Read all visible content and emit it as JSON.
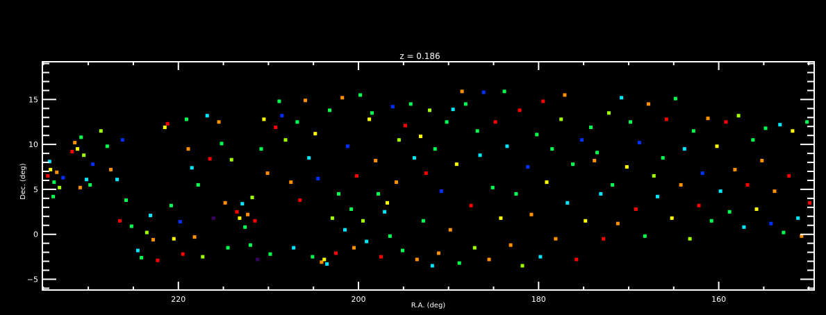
{
  "chart_data": {
    "type": "scatter",
    "title": "z = 0.186",
    "xlabel": "R.A. (deg)",
    "ylabel": "Dec. (deg)",
    "xlim": [
      235.1,
      149.4
    ],
    "ylim": [
      -6.2,
      19.2
    ],
    "x_reversed": true,
    "xticks": [
      220,
      200,
      180,
      160
    ],
    "yticks": [
      -5,
      0,
      5,
      10,
      15
    ],
    "grid": false,
    "background": "#000000",
    "axis_color": "#ffffff",
    "marker": "square",
    "palette": [
      "#3c0060",
      "#0030ff",
      "#00e8ff",
      "#00ff50",
      "#a0ff00",
      "#ffff00",
      "#ff9000",
      "#ff0000"
    ],
    "points": [
      [
        234.5,
        6.5,
        7
      ],
      [
        234.2,
        7.2,
        5
      ],
      [
        233.8,
        5.8,
        3
      ],
      [
        233.5,
        6.9,
        6
      ],
      [
        233.9,
        4.2,
        3
      ],
      [
        234.3,
        8.1,
        2
      ],
      [
        233.2,
        5.2,
        4
      ],
      [
        232.8,
        6.3,
        1
      ],
      [
        231.5,
        10.2,
        6
      ],
      [
        231.2,
        9.5,
        5
      ],
      [
        230.8,
        10.8,
        3
      ],
      [
        230.5,
        8.8,
        4
      ],
      [
        231.8,
        9.2,
        7
      ],
      [
        230.2,
        6.1,
        2
      ],
      [
        229.8,
        5.5,
        3
      ],
      [
        230.9,
        5.2,
        6
      ],
      [
        229.5,
        7.8,
        1
      ],
      [
        228.6,
        11.5,
        4
      ],
      [
        227.9,
        9.8,
        3
      ],
      [
        227.5,
        7.2,
        6
      ],
      [
        226.8,
        6.1,
        2
      ],
      [
        226.2,
        10.5,
        1
      ],
      [
        225.8,
        3.8,
        3
      ],
      [
        226.5,
        1.5,
        7
      ],
      [
        225.2,
        0.9,
        3
      ],
      [
        224.5,
        -1.8,
        2
      ],
      [
        224.1,
        -2.6,
        3
      ],
      [
        223.5,
        0.2,
        4
      ],
      [
        222.8,
        -0.6,
        6
      ],
      [
        223.1,
        2.1,
        2
      ],
      [
        222.3,
        -2.9,
        7
      ],
      [
        221.5,
        11.9,
        5
      ],
      [
        221.2,
        12.3,
        7
      ],
      [
        220.8,
        3.2,
        3
      ],
      [
        220.5,
        -0.5,
        5
      ],
      [
        219.8,
        1.4,
        1
      ],
      [
        219.5,
        -2.2,
        7
      ],
      [
        219.1,
        12.8,
        3
      ],
      [
        218.9,
        9.5,
        6
      ],
      [
        218.5,
        7.4,
        2
      ],
      [
        218.2,
        -0.3,
        6
      ],
      [
        217.8,
        5.5,
        3
      ],
      [
        217.3,
        -2.5,
        4
      ],
      [
        216.8,
        13.2,
        2
      ],
      [
        216.5,
        8.4,
        7
      ],
      [
        216.1,
        1.8,
        0
      ],
      [
        215.5,
        12.5,
        6
      ],
      [
        215.2,
        10.1,
        3
      ],
      [
        214.8,
        3.5,
        6
      ],
      [
        214.5,
        -1.5,
        3
      ],
      [
        214.1,
        8.3,
        4
      ],
      [
        213.5,
        2.5,
        7
      ],
      [
        213.2,
        1.8,
        5
      ],
      [
        212.9,
        3.4,
        2
      ],
      [
        212.6,
        0.8,
        3
      ],
      [
        212.3,
        2.2,
        6
      ],
      [
        212.0,
        -1.2,
        3
      ],
      [
        211.8,
        4.1,
        4
      ],
      [
        211.5,
        1.5,
        7
      ],
      [
        211.2,
        -2.8,
        0
      ],
      [
        210.8,
        9.5,
        3
      ],
      [
        210.5,
        12.8,
        5
      ],
      [
        210.1,
        6.8,
        6
      ],
      [
        209.8,
        -2.2,
        3
      ],
      [
        209.2,
        11.9,
        7
      ],
      [
        208.8,
        14.8,
        3
      ],
      [
        208.5,
        13.2,
        1
      ],
      [
        208.1,
        10.5,
        4
      ],
      [
        207.5,
        5.8,
        6
      ],
      [
        207.2,
        -1.5,
        2
      ],
      [
        206.8,
        12.5,
        3
      ],
      [
        206.5,
        3.8,
        7
      ],
      [
        205.9,
        14.9,
        6
      ],
      [
        205.5,
        8.5,
        2
      ],
      [
        205.1,
        -2.5,
        3
      ],
      [
        204.8,
        11.2,
        5
      ],
      [
        204.5,
        6.2,
        1
      ],
      [
        204.1,
        -3.1,
        6
      ],
      [
        203.8,
        -2.8,
        5
      ],
      [
        203.5,
        -3.3,
        2
      ],
      [
        203.2,
        13.8,
        3
      ],
      [
        202.9,
        1.8,
        4
      ],
      [
        202.5,
        -2.1,
        7
      ],
      [
        202.2,
        4.5,
        3
      ],
      [
        201.8,
        15.2,
        6
      ],
      [
        201.5,
        0.5,
        2
      ],
      [
        201.2,
        9.8,
        1
      ],
      [
        200.8,
        2.8,
        3
      ],
      [
        200.5,
        -1.5,
        6
      ],
      [
        200.2,
        6.5,
        7
      ],
      [
        199.8,
        15.5,
        3
      ],
      [
        199.5,
        1.5,
        4
      ],
      [
        199.1,
        -0.8,
        2
      ],
      [
        198.8,
        12.8,
        5
      ],
      [
        198.5,
        13.5,
        3
      ],
      [
        198.1,
        8.2,
        6
      ],
      [
        197.8,
        4.5,
        3
      ],
      [
        197.5,
        -2.5,
        7
      ],
      [
        197.1,
        2.5,
        2
      ],
      [
        196.8,
        3.5,
        5
      ],
      [
        196.5,
        -0.2,
        3
      ],
      [
        196.2,
        14.2,
        1
      ],
      [
        195.8,
        5.8,
        6
      ],
      [
        195.5,
        10.5,
        4
      ],
      [
        195.1,
        -1.8,
        3
      ],
      [
        194.8,
        12.1,
        7
      ],
      [
        194.2,
        14.5,
        3
      ],
      [
        193.8,
        8.5,
        2
      ],
      [
        193.5,
        -2.8,
        6
      ],
      [
        193.1,
        10.9,
        5
      ],
      [
        192.8,
        1.5,
        3
      ],
      [
        192.5,
        6.8,
        7
      ],
      [
        192.1,
        13.8,
        4
      ],
      [
        191.8,
        -3.5,
        2
      ],
      [
        191.5,
        9.5,
        3
      ],
      [
        191.1,
        -2.1,
        6
      ],
      [
        190.8,
        4.8,
        1
      ],
      [
        190.2,
        12.5,
        3
      ],
      [
        189.8,
        0.5,
        6
      ],
      [
        189.5,
        13.9,
        2
      ],
      [
        189.1,
        7.8,
        5
      ],
      [
        188.8,
        -3.2,
        3
      ],
      [
        188.5,
        15.9,
        6
      ],
      [
        188.1,
        14.5,
        3
      ],
      [
        187.5,
        3.2,
        7
      ],
      [
        187.1,
        -1.5,
        4
      ],
      [
        186.8,
        11.5,
        3
      ],
      [
        186.5,
        8.8,
        2
      ],
      [
        186.1,
        15.8,
        1
      ],
      [
        185.5,
        -2.8,
        6
      ],
      [
        185.1,
        5.2,
        3
      ],
      [
        184.8,
        12.5,
        7
      ],
      [
        184.2,
        1.8,
        5
      ],
      [
        183.8,
        15.9,
        3
      ],
      [
        183.5,
        9.8,
        2
      ],
      [
        183.1,
        -1.2,
        6
      ],
      [
        182.5,
        4.5,
        3
      ],
      [
        182.1,
        13.8,
        7
      ],
      [
        181.8,
        -3.5,
        4
      ],
      [
        181.2,
        7.5,
        1
      ],
      [
        180.8,
        2.2,
        6
      ],
      [
        180.2,
        11.1,
        3
      ],
      [
        179.8,
        -2.5,
        2
      ],
      [
        179.5,
        14.8,
        7
      ],
      [
        179.1,
        5.8,
        5
      ],
      [
        178.5,
        9.5,
        3
      ],
      [
        178.1,
        -0.5,
        6
      ],
      [
        177.5,
        12.8,
        4
      ],
      [
        177.1,
        15.5,
        6
      ],
      [
        176.8,
        3.5,
        2
      ],
      [
        176.2,
        7.8,
        3
      ],
      [
        175.8,
        -2.8,
        7
      ],
      [
        175.2,
        10.5,
        1
      ],
      [
        174.8,
        1.5,
        5
      ],
      [
        174.2,
        11.9,
        3
      ],
      [
        173.8,
        8.2,
        6
      ],
      [
        173.5,
        9.1,
        3
      ],
      [
        173.1,
        4.5,
        2
      ],
      [
        172.8,
        -0.5,
        7
      ],
      [
        172.2,
        13.5,
        4
      ],
      [
        171.8,
        5.5,
        3
      ],
      [
        171.2,
        1.2,
        6
      ],
      [
        170.8,
        15.2,
        2
      ],
      [
        170.2,
        7.5,
        5
      ],
      [
        169.8,
        12.5,
        3
      ],
      [
        169.2,
        2.8,
        7
      ],
      [
        168.8,
        10.2,
        1
      ],
      [
        168.2,
        -0.2,
        3
      ],
      [
        167.8,
        14.5,
        6
      ],
      [
        167.2,
        6.5,
        4
      ],
      [
        166.8,
        4.2,
        2
      ],
      [
        166.2,
        8.5,
        3
      ],
      [
        165.8,
        12.8,
        7
      ],
      [
        165.2,
        1.8,
        5
      ],
      [
        164.8,
        15.1,
        3
      ],
      [
        164.2,
        5.5,
        6
      ],
      [
        163.8,
        9.5,
        2
      ],
      [
        163.2,
        -0.5,
        4
      ],
      [
        162.8,
        11.5,
        3
      ],
      [
        162.2,
        3.2,
        7
      ],
      [
        161.8,
        6.8,
        1
      ],
      [
        161.2,
        12.9,
        6
      ],
      [
        160.8,
        1.5,
        3
      ],
      [
        160.2,
        9.8,
        5
      ],
      [
        159.8,
        4.8,
        2
      ],
      [
        159.2,
        12.5,
        7
      ],
      [
        158.8,
        2.5,
        3
      ],
      [
        158.2,
        7.2,
        6
      ],
      [
        157.8,
        13.2,
        4
      ],
      [
        157.2,
        0.8,
        2
      ],
      [
        156.8,
        5.5,
        7
      ],
      [
        156.2,
        10.5,
        3
      ],
      [
        155.8,
        2.8,
        5
      ],
      [
        155.2,
        8.2,
        6
      ],
      [
        154.8,
        11.8,
        3
      ],
      [
        154.2,
        1.2,
        1
      ],
      [
        153.8,
        4.8,
        6
      ],
      [
        153.2,
        12.2,
        2
      ],
      [
        152.8,
        0.2,
        3
      ],
      [
        152.2,
        6.5,
        7
      ],
      [
        151.8,
        11.5,
        5
      ],
      [
        151.2,
        1.8,
        2
      ],
      [
        150.8,
        -0.2,
        6
      ],
      [
        150.2,
        12.5,
        3
      ],
      [
        149.9,
        3.5,
        7
      ]
    ]
  }
}
